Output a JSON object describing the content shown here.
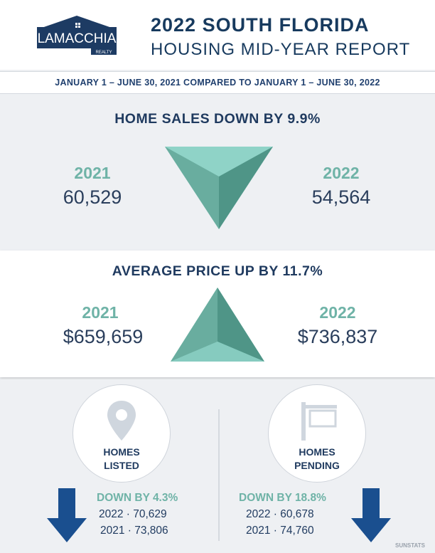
{
  "brand": {
    "name": "LAMACCHIA",
    "sub": "REALTY"
  },
  "title": {
    "line1": "2022 SOUTH FLORIDA",
    "line2": "HOUSING MID-YEAR REPORT"
  },
  "date_range": "JANUARY 1  –  JUNE 30, 2021 COMPARED TO JANUARY 1  –  JUNE 30, 2022",
  "home_sales": {
    "heading": "HOME SALES DOWN BY 9.9%",
    "year_a": "2021",
    "value_a": "60,529",
    "year_b": "2022",
    "value_b": "54,564"
  },
  "avg_price": {
    "heading": "AVERAGE PRICE UP BY 11.7%",
    "year_a": "2021",
    "value_a": "$659,659",
    "year_b": "2022",
    "value_b": "$736,837"
  },
  "listed": {
    "label_line1": "HOMES",
    "label_line2": "LISTED",
    "change": "DOWN BY 4.3%",
    "row1": "2022 ·  70,629",
    "row2": "2021 ·  73,806"
  },
  "pending": {
    "label_line1": "HOMES",
    "label_line2": "PENDING",
    "change": "DOWN BY 18.8%",
    "row1": "2022 · 60,678",
    "row2": "2021 ·  74,760"
  },
  "source": "SUNSTATS",
  "colors": {
    "navy": "#1f3a5f",
    "teal": "#6fb3a7",
    "arrow": "#1a4f8f"
  }
}
